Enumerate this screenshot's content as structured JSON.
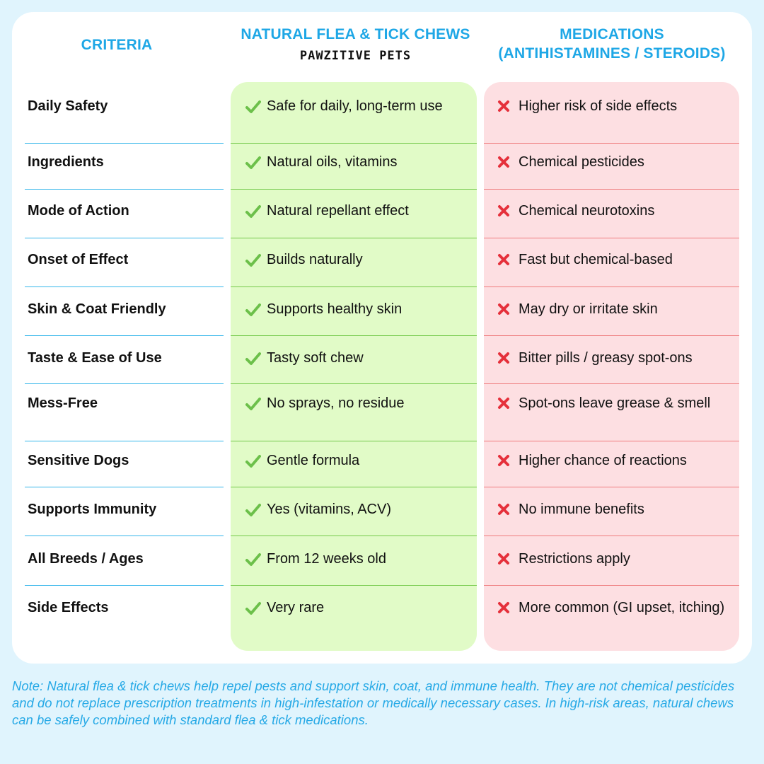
{
  "headers": {
    "criteria": "CRITERIA",
    "natural": "NATURAL FLEA & TICK CHEWS",
    "brand": "PAWZITIVE PETS",
    "medications_line1": "MEDICATIONS",
    "medications_line2": "(ANTIHISTAMINES / STEROIDS)"
  },
  "colors": {
    "accent": "#1ea7e6",
    "green_panel": "#e1fbc7",
    "red_panel": "#fddfe2",
    "check": "#6cc04a",
    "cross": "#e5303b"
  },
  "icons": {
    "natural": "check-icon",
    "medications": "cross-icon"
  },
  "rows": [
    {
      "criteria": "Daily Safety",
      "natural": "Safe for daily, long-term use",
      "medications": "Higher risk of side effects"
    },
    {
      "criteria": "Ingredients",
      "natural": "Natural oils, vitamins",
      "medications": "Chemical pesticides"
    },
    {
      "criteria": "Mode of Action",
      "natural": "Natural repellant effect",
      "medications": "Chemical neurotoxins"
    },
    {
      "criteria": "Onset of Effect",
      "natural": "Builds naturally",
      "medications": " Fast but chemical-based"
    },
    {
      "criteria": "Skin & Coat Friendly",
      "natural": "Supports healthy skin",
      "medications": "May dry or irritate skin"
    },
    {
      "criteria": "Taste & Ease of Use",
      "natural": "Tasty soft chew",
      "medications": "Bitter pills / greasy spot-ons"
    },
    {
      "criteria": "Mess-Free",
      "natural": "No sprays, no residue",
      "medications": "Spot-ons leave grease & smell"
    },
    {
      "criteria": "Sensitive Dogs",
      "natural": "Gentle formula",
      "medications": "Higher chance of reactions"
    },
    {
      "criteria": "Supports Immunity",
      "natural": "Yes (vitamins, ACV)",
      "medications": "No immune benefits"
    },
    {
      "criteria": "All Breeds / Ages",
      "natural": "From 12 weeks old",
      "medications": "Restrictions apply"
    },
    {
      "criteria": "Side Effects",
      "natural": "Very rare",
      "medications": "More common (GI upset, itching)"
    }
  ],
  "note": "Note: Natural flea & tick chews help repel pests and support skin, coat, and immune health. They are not chemical pesticides and do not replace prescription treatments in high-infestation or medically necessary cases. In high-risk areas, natural chews can be safely combined with standard flea & tick medications."
}
